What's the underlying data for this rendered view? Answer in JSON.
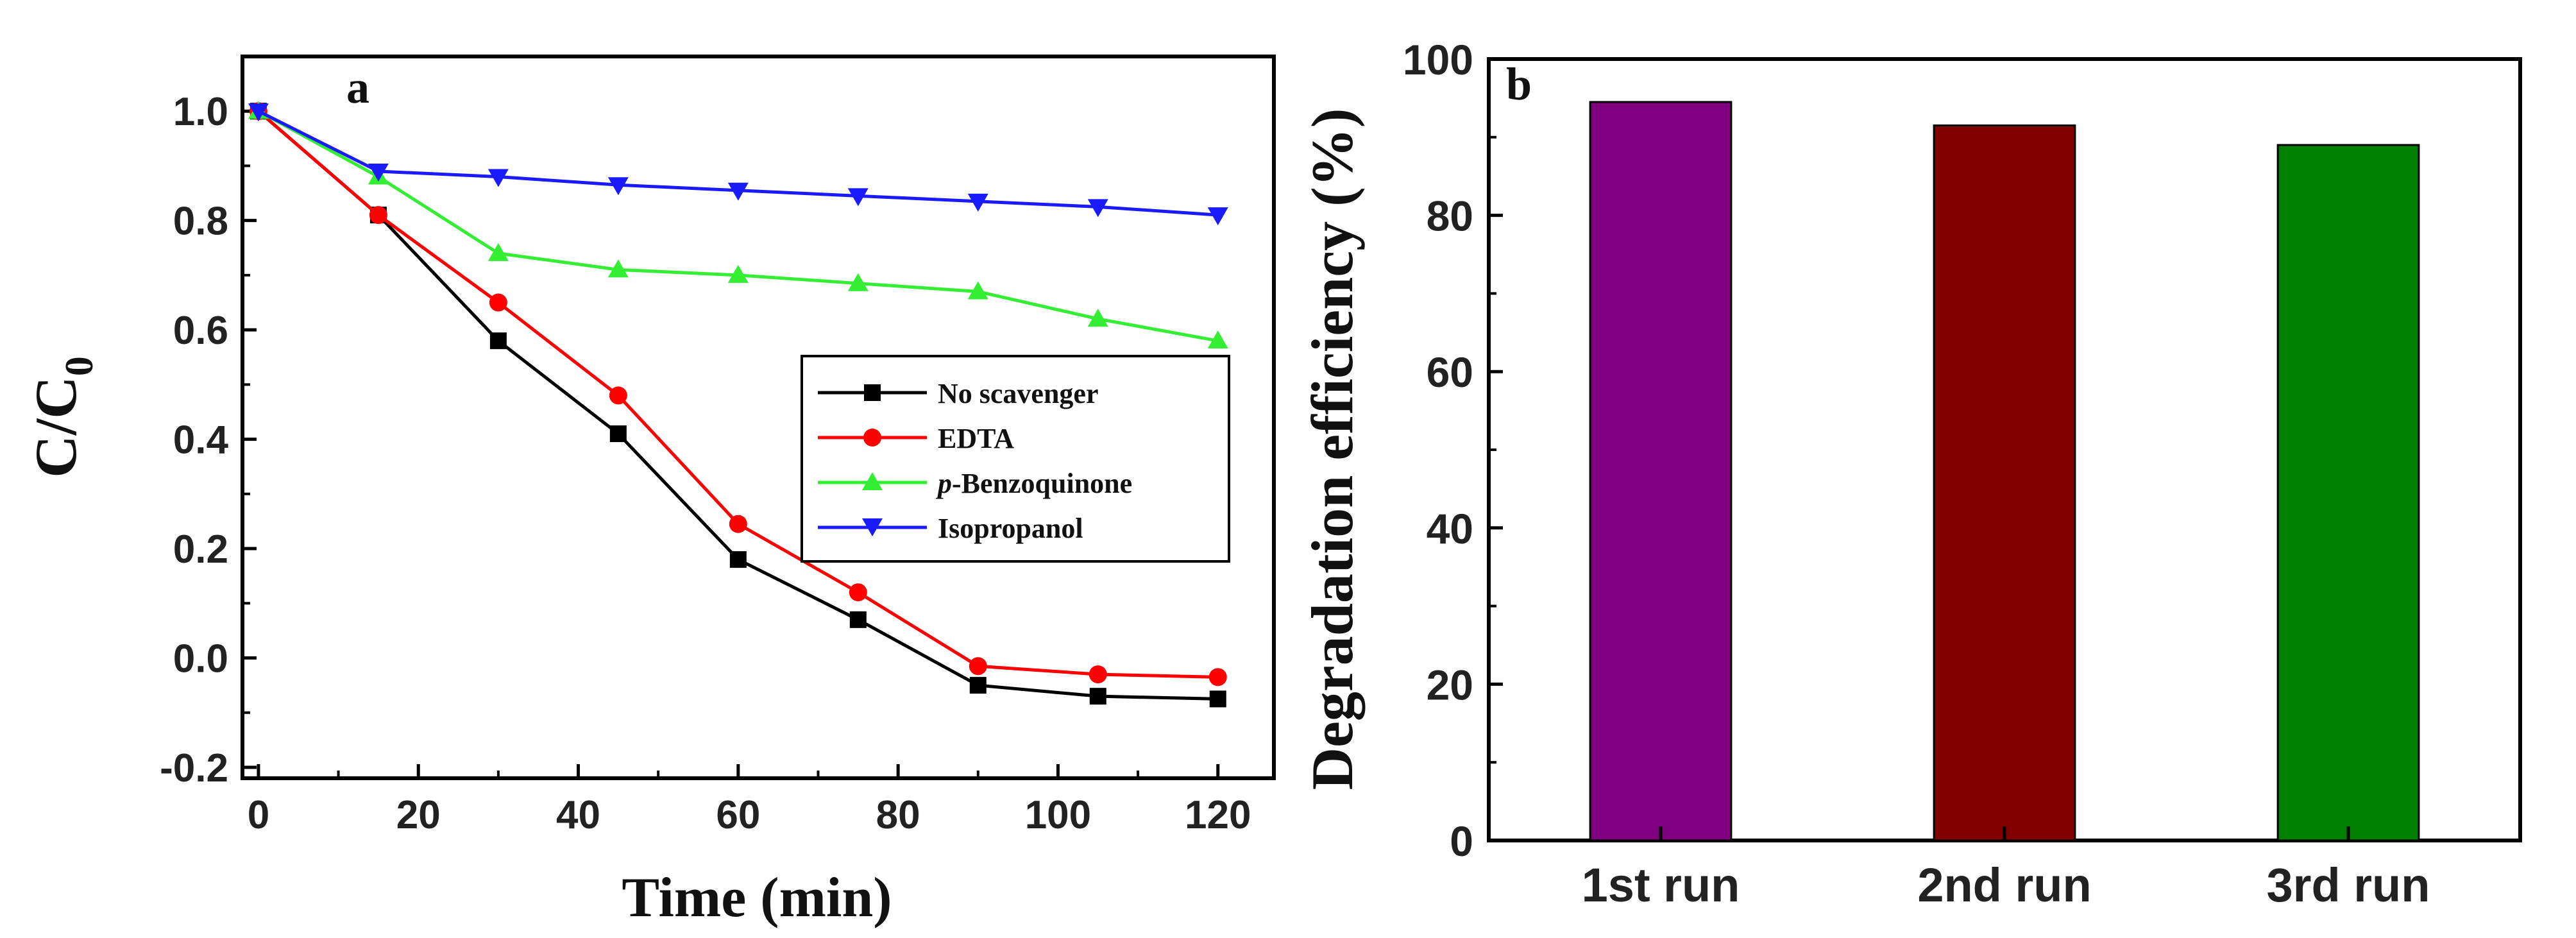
{
  "chart_data": [
    {
      "type": "line",
      "panel_label": "a",
      "xlabel": "Time (min)",
      "ylabel": "C/C",
      "ylabel_subscript": "0",
      "xlim": [
        -2,
        127
      ],
      "ylim": [
        -0.22,
        1.1
      ],
      "xticks": [
        0,
        20,
        40,
        60,
        80,
        100,
        120
      ],
      "xtick_labels": [
        "0",
        "20",
        "40",
        "60",
        "80",
        "100",
        "120"
      ],
      "yticks": [
        -0.2,
        0.0,
        0.2,
        0.4,
        0.6,
        0.8,
        1.0
      ],
      "ytick_labels": [
        "-0.2",
        "0.0",
        "0.2",
        "0.4",
        "0.6",
        "0.8",
        "1.0"
      ],
      "x": [
        0,
        15,
        30,
        45,
        60,
        75,
        90,
        105,
        120
      ],
      "legend_position": "center-right",
      "series": [
        {
          "name": "No scavenger",
          "color": "#000000",
          "marker": "square",
          "values": [
            1.0,
            0.81,
            0.58,
            0.41,
            0.18,
            0.07,
            -0.05,
            -0.07,
            -0.075
          ]
        },
        {
          "name": "EDTA",
          "color": "#ff0000",
          "marker": "circle",
          "values": [
            1.0,
            0.81,
            0.65,
            0.48,
            0.245,
            0.12,
            -0.015,
            -0.03,
            -0.035
          ]
        },
        {
          "name": "p-Benzoquinone",
          "name_prefix_italic": "p",
          "name_rest": "-Benzoquinone",
          "color": "#33ee33",
          "marker": "triangle-up",
          "values": [
            1.0,
            0.88,
            0.74,
            0.71,
            0.7,
            0.685,
            0.67,
            0.62,
            0.58
          ]
        },
        {
          "name": "Isopropanol",
          "color": "#1a1aff",
          "marker": "triangle-down",
          "values": [
            1.0,
            0.89,
            0.88,
            0.865,
            0.855,
            0.845,
            0.835,
            0.825,
            0.81
          ]
        }
      ]
    },
    {
      "type": "bar",
      "panel_label": "b",
      "xlabel": "",
      "ylabel": "Degradation efficiency (%)",
      "ylim": [
        0,
        100
      ],
      "yticks": [
        0,
        20,
        40,
        60,
        80,
        100
      ],
      "ytick_labels": [
        "0",
        "20",
        "40",
        "60",
        "80",
        "100"
      ],
      "categories": [
        "1st run",
        "2nd run",
        "3rd run"
      ],
      "values": [
        94.5,
        91.5,
        89.0
      ],
      "colors": [
        "#800080",
        "#800000",
        "#008000"
      ]
    }
  ]
}
